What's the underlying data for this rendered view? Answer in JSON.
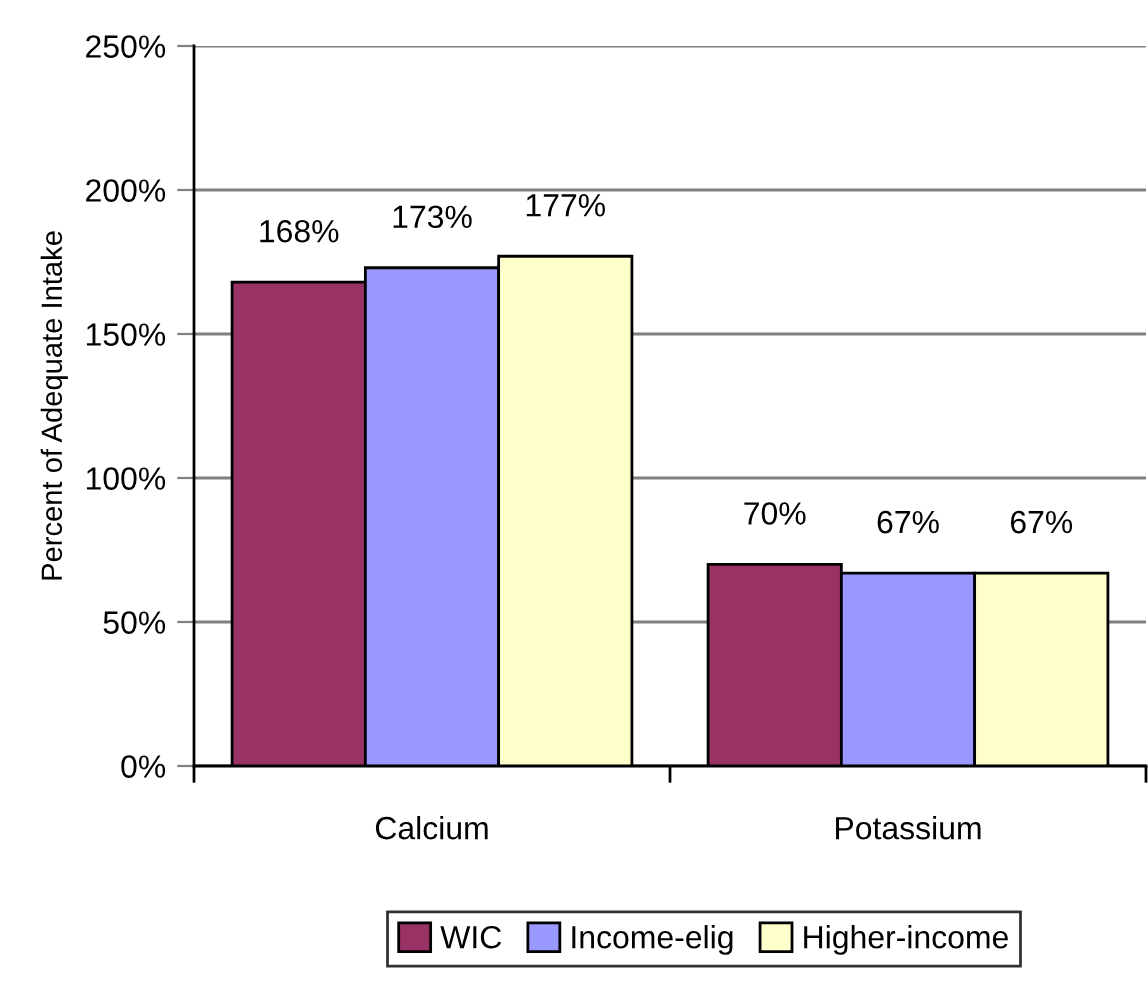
{
  "chart_data": {
    "type": "bar",
    "categories": [
      "Calcium",
      "Potassium"
    ],
    "ylabel": "Percent of Adequate Intake",
    "series": [
      {
        "name": "WIC",
        "color": "#993366",
        "values": [
          168,
          70
        ],
        "value_labels": [
          "168%",
          "70%"
        ]
      },
      {
        "name": "Income-elig",
        "color": "#9999ff",
        "values": [
          173,
          67
        ],
        "value_labels": [
          "173%",
          "67%"
        ]
      },
      {
        "name": "Higher-income",
        "color": "#ffffcc",
        "values": [
          177,
          67
        ],
        "value_labels": [
          "177%",
          "67%"
        ]
      }
    ],
    "ylim": [
      0,
      250
    ],
    "yticks": [
      {
        "value": 0,
        "label": "0%"
      },
      {
        "value": 50,
        "label": "50%"
      },
      {
        "value": 100,
        "label": "100%"
      },
      {
        "value": 150,
        "label": "150%"
      },
      {
        "value": 200,
        "label": "200%"
      },
      {
        "value": 250,
        "label": "250%"
      }
    ],
    "grid": "y",
    "legend": "bottom"
  }
}
